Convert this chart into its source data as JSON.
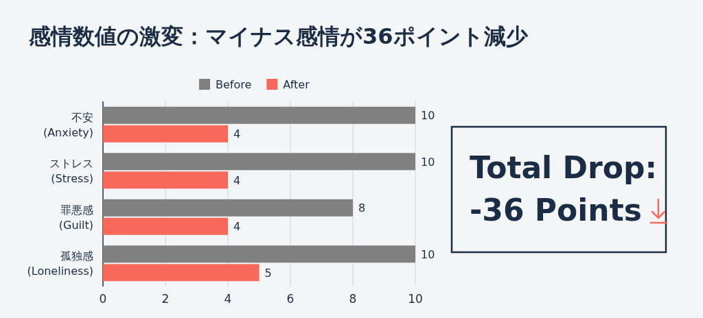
{
  "chart_data": {
    "type": "bar",
    "orientation": "horizontal",
    "title": "感情数値の激変：マイナス感情が36ポイント減少",
    "categories": [
      "不安\n(Anxiety)",
      "ストレス\n(Stress)",
      "罪悪感\n(Guilt)",
      "孤独感\n(Loneliness)"
    ],
    "series": [
      {
        "name": "Before",
        "color": "#808080",
        "values": [
          10,
          10,
          8,
          10
        ]
      },
      {
        "name": "After",
        "color": "#f8695c",
        "values": [
          4,
          4,
          4,
          5
        ]
      }
    ],
    "xlim": [
      0,
      10
    ],
    "xticks": [
      0,
      2,
      4,
      6,
      8,
      10
    ],
    "grid": "x",
    "legend": "top",
    "data_labels": true,
    "annotations": [
      "Total Drop:\n-36 Points"
    ]
  }
}
